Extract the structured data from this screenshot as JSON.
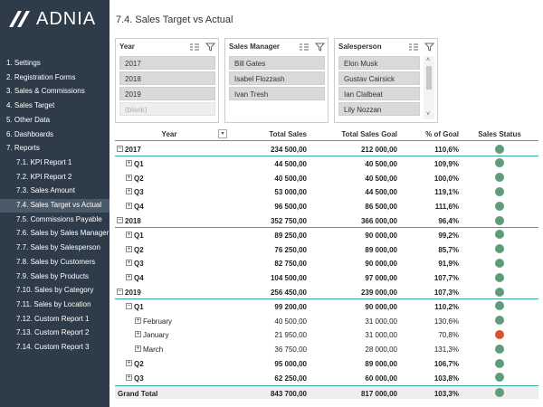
{
  "sidebar": {
    "logo": "ADNIA",
    "menu": [
      {
        "label": "1. Settings",
        "level": 0
      },
      {
        "label": "2. Registration Forms",
        "level": 0
      },
      {
        "label": "3. Sales & Commissions",
        "level": 0
      },
      {
        "label": "4. Sales Target",
        "level": 0
      },
      {
        "label": "5. Other Data",
        "level": 0
      },
      {
        "label": "6. Dashboards",
        "level": 0
      },
      {
        "label": "7. Reports",
        "level": 0
      },
      {
        "label": "7.1. KPI Report 1",
        "level": 1
      },
      {
        "label": "7.2. KPI Report 2",
        "level": 1
      },
      {
        "label": "7.3. Sales Amount",
        "level": 1
      },
      {
        "label": "7.4. Sales Target vs Actual",
        "level": 1,
        "active": true
      },
      {
        "label": "7.5. Commissions Payable",
        "level": 1
      },
      {
        "label": "7.6. Sales by Sales Manager",
        "level": 1
      },
      {
        "label": "7.7. Sales by Salesperson",
        "level": 1
      },
      {
        "label": "7.8. Sales by Customers",
        "level": 1
      },
      {
        "label": "7.9. Sales by Products",
        "level": 1
      },
      {
        "label": "7.10. Sales by Category",
        "level": 1
      },
      {
        "label": "7.11. Sales by Location",
        "level": 1
      },
      {
        "label": "7.12. Custom Report 1",
        "level": 1
      },
      {
        "label": "7.13. Custom Report 2",
        "level": 1
      },
      {
        "label": "7.14. Custom Report 3",
        "level": 1
      }
    ]
  },
  "title": "7.4. Sales Target vs Actual",
  "slicers": [
    {
      "title": "Year",
      "items": [
        {
          "label": "2017"
        },
        {
          "label": "2018"
        },
        {
          "label": "2019"
        },
        {
          "label": "(blank)",
          "available": false
        }
      ]
    },
    {
      "title": "Sales Manager",
      "items": [
        {
          "label": "Bill Gates"
        },
        {
          "label": "Isabel Flozzash"
        },
        {
          "label": "Ivan Tresh"
        }
      ]
    },
    {
      "title": "Salesperson",
      "items": [
        {
          "label": "Elon Musk"
        },
        {
          "label": "Gustav Cairsick"
        },
        {
          "label": "Ian Clalbeat"
        },
        {
          "label": "Lily Nozzan"
        }
      ],
      "scrollbar": true
    }
  ],
  "table": {
    "columns": [
      "Year",
      "Total Sales",
      "Total Sales Goal",
      "% of Goal",
      "Sales Status"
    ],
    "rows": [
      {
        "cells": [
          "2017",
          "234 500,00",
          "212 000,00",
          "110,6%"
        ],
        "level": 0,
        "expanded": true,
        "status": "#5e9c7c"
      },
      {
        "cells": [
          "Q1",
          "44 500,00",
          "40 500,00",
          "109,9%"
        ],
        "level": 1,
        "expanded": false,
        "status": "#5e9c7c"
      },
      {
        "cells": [
          "Q2",
          "40 500,00",
          "40 500,00",
          "100,0%"
        ],
        "level": 1,
        "expanded": false,
        "status": "#5e9c7c"
      },
      {
        "cells": [
          "Q3",
          "53 000,00",
          "44 500,00",
          "119,1%"
        ],
        "level": 1,
        "expanded": false,
        "status": "#5e9c7c"
      },
      {
        "cells": [
          "Q4",
          "96 500,00",
          "86 500,00",
          "111,6%"
        ],
        "level": 1,
        "expanded": false,
        "status": "#5e9c7c"
      },
      {
        "cells": [
          "2018",
          "352 750,00",
          "366 000,00",
          "96,4%"
        ],
        "level": 0,
        "expanded": true,
        "status": "#5e9c7c"
      },
      {
        "cells": [
          "Q1",
          "89 250,00",
          "90 000,00",
          "99,2%"
        ],
        "level": 1,
        "expanded": false,
        "status": "#5e9c7c"
      },
      {
        "cells": [
          "Q2",
          "76 250,00",
          "89 000,00",
          "85,7%"
        ],
        "level": 1,
        "expanded": false,
        "status": "#5e9c7c"
      },
      {
        "cells": [
          "Q3",
          "82 750,00",
          "90 000,00",
          "91,9%"
        ],
        "level": 1,
        "expanded": false,
        "status": "#5e9c7c"
      },
      {
        "cells": [
          "Q4",
          "104 500,00",
          "97 000,00",
          "107,7%"
        ],
        "level": 1,
        "expanded": false,
        "status": "#5e9c7c"
      },
      {
        "cells": [
          "2019",
          "256 450,00",
          "239 000,00",
          "107,3%"
        ],
        "level": 0,
        "expanded": true,
        "status": "#5e9c7c"
      },
      {
        "cells": [
          "Q1",
          "99 200,00",
          "90 000,00",
          "110,2%"
        ],
        "level": 1,
        "expanded": true,
        "status": "#5e9c7c"
      },
      {
        "cells": [
          "February",
          "40 500,00",
          "31 000,00",
          "130,6%"
        ],
        "level": 2,
        "expanded": false,
        "status": "#5e9c7c"
      },
      {
        "cells": [
          "January",
          "21 950,00",
          "31 000,00",
          "70,8%"
        ],
        "level": 2,
        "expanded": false,
        "status": "#d9532f"
      },
      {
        "cells": [
          "March",
          "36 750,00",
          "28 000,00",
          "131,3%"
        ],
        "level": 2,
        "expanded": false,
        "status": "#5e9c7c"
      },
      {
        "cells": [
          "Q2",
          "95 000,00",
          "89 000,00",
          "106,7%"
        ],
        "level": 1,
        "expanded": false,
        "status": "#5e9c7c"
      },
      {
        "cells": [
          "Q3",
          "62 250,00",
          "60 000,00",
          "103,8%"
        ],
        "level": 1,
        "expanded": false,
        "status": "#5e9c7c"
      },
      {
        "cells": [
          "Grand Total",
          "843 700,00",
          "817 000,00",
          "103,3%"
        ],
        "level": 0,
        "total": true,
        "status": "#5e9c7c"
      }
    ]
  }
}
